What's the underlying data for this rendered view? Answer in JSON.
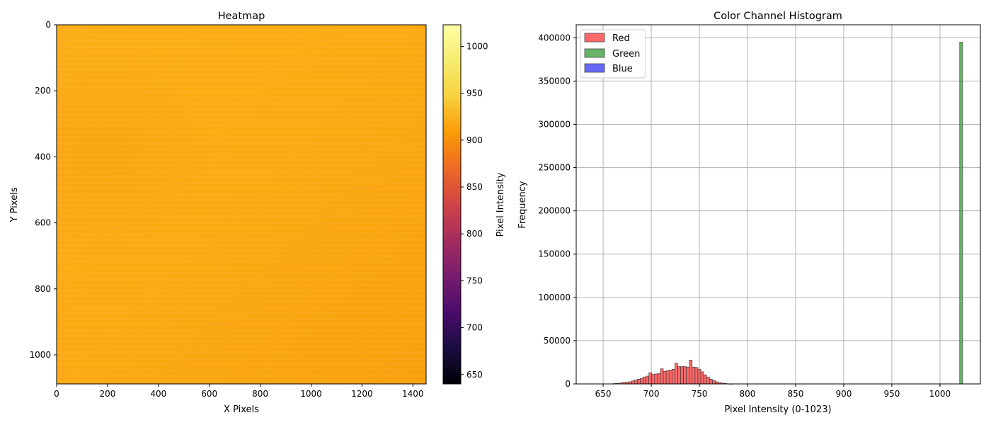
{
  "chart_data": [
    {
      "type": "heatmap",
      "title": "Heatmap",
      "xlabel": "X Pixels",
      "ylabel": "Y Pixels",
      "xlim": [
        0,
        1452
      ],
      "ylim": [
        1088,
        0
      ],
      "xticks": [
        0,
        200,
        400,
        600,
        800,
        1000,
        1200,
        1400
      ],
      "yticks": [
        0,
        200,
        400,
        600,
        800,
        1000
      ],
      "colormap": "inferno",
      "colorbar": {
        "label": "Pixel Intensity",
        "range": [
          640,
          1023
        ],
        "ticks": [
          650,
          700,
          750,
          800,
          850,
          900,
          950,
          1000
        ]
      },
      "approx_value_range": [
        930,
        955
      ]
    },
    {
      "type": "bar",
      "title": "Color Channel Histogram",
      "xlabel": "Pixel Intensity (0-1023)",
      "ylabel": "Frequency",
      "xlim": [
        622,
        1042
      ],
      "ylim": [
        0,
        415000
      ],
      "xticks": [
        650,
        700,
        750,
        800,
        850,
        900,
        950,
        1000
      ],
      "yticks": [
        0,
        50000,
        100000,
        150000,
        200000,
        250000,
        300000,
        350000,
        400000
      ],
      "grid": true,
      "legend_position": "top-left",
      "series": [
        {
          "name": "Red",
          "color": "#ff4d4d",
          "bin_width": 3,
          "x": [
            660,
            663,
            666,
            669,
            672,
            675,
            678,
            681,
            684,
            687,
            690,
            693,
            696,
            699,
            702,
            705,
            708,
            711,
            714,
            717,
            720,
            723,
            726,
            729,
            732,
            735,
            738,
            741,
            744,
            747,
            750,
            753,
            756,
            759,
            762,
            765,
            768,
            771,
            774,
            777,
            780,
            783
          ],
          "values": [
            200,
            500,
            800,
            1200,
            1800,
            2000,
            2500,
            3500,
            4500,
            5500,
            6500,
            8000,
            9000,
            13000,
            11000,
            11500,
            12000,
            17500,
            14500,
            15500,
            16000,
            17000,
            24000,
            20000,
            20000,
            20000,
            19500,
            27500,
            19500,
            19000,
            17000,
            14000,
            10500,
            8000,
            5500,
            4000,
            2500,
            1500,
            1000,
            500,
            200,
            100
          ]
        },
        {
          "name": "Green",
          "color": "#4da64d",
          "bin_width": 3,
          "x": [
            1022
          ],
          "values": [
            395000
          ]
        },
        {
          "name": "Blue",
          "color": "#4d4df2",
          "bin_width": 3,
          "x": [],
          "values": []
        }
      ]
    }
  ]
}
